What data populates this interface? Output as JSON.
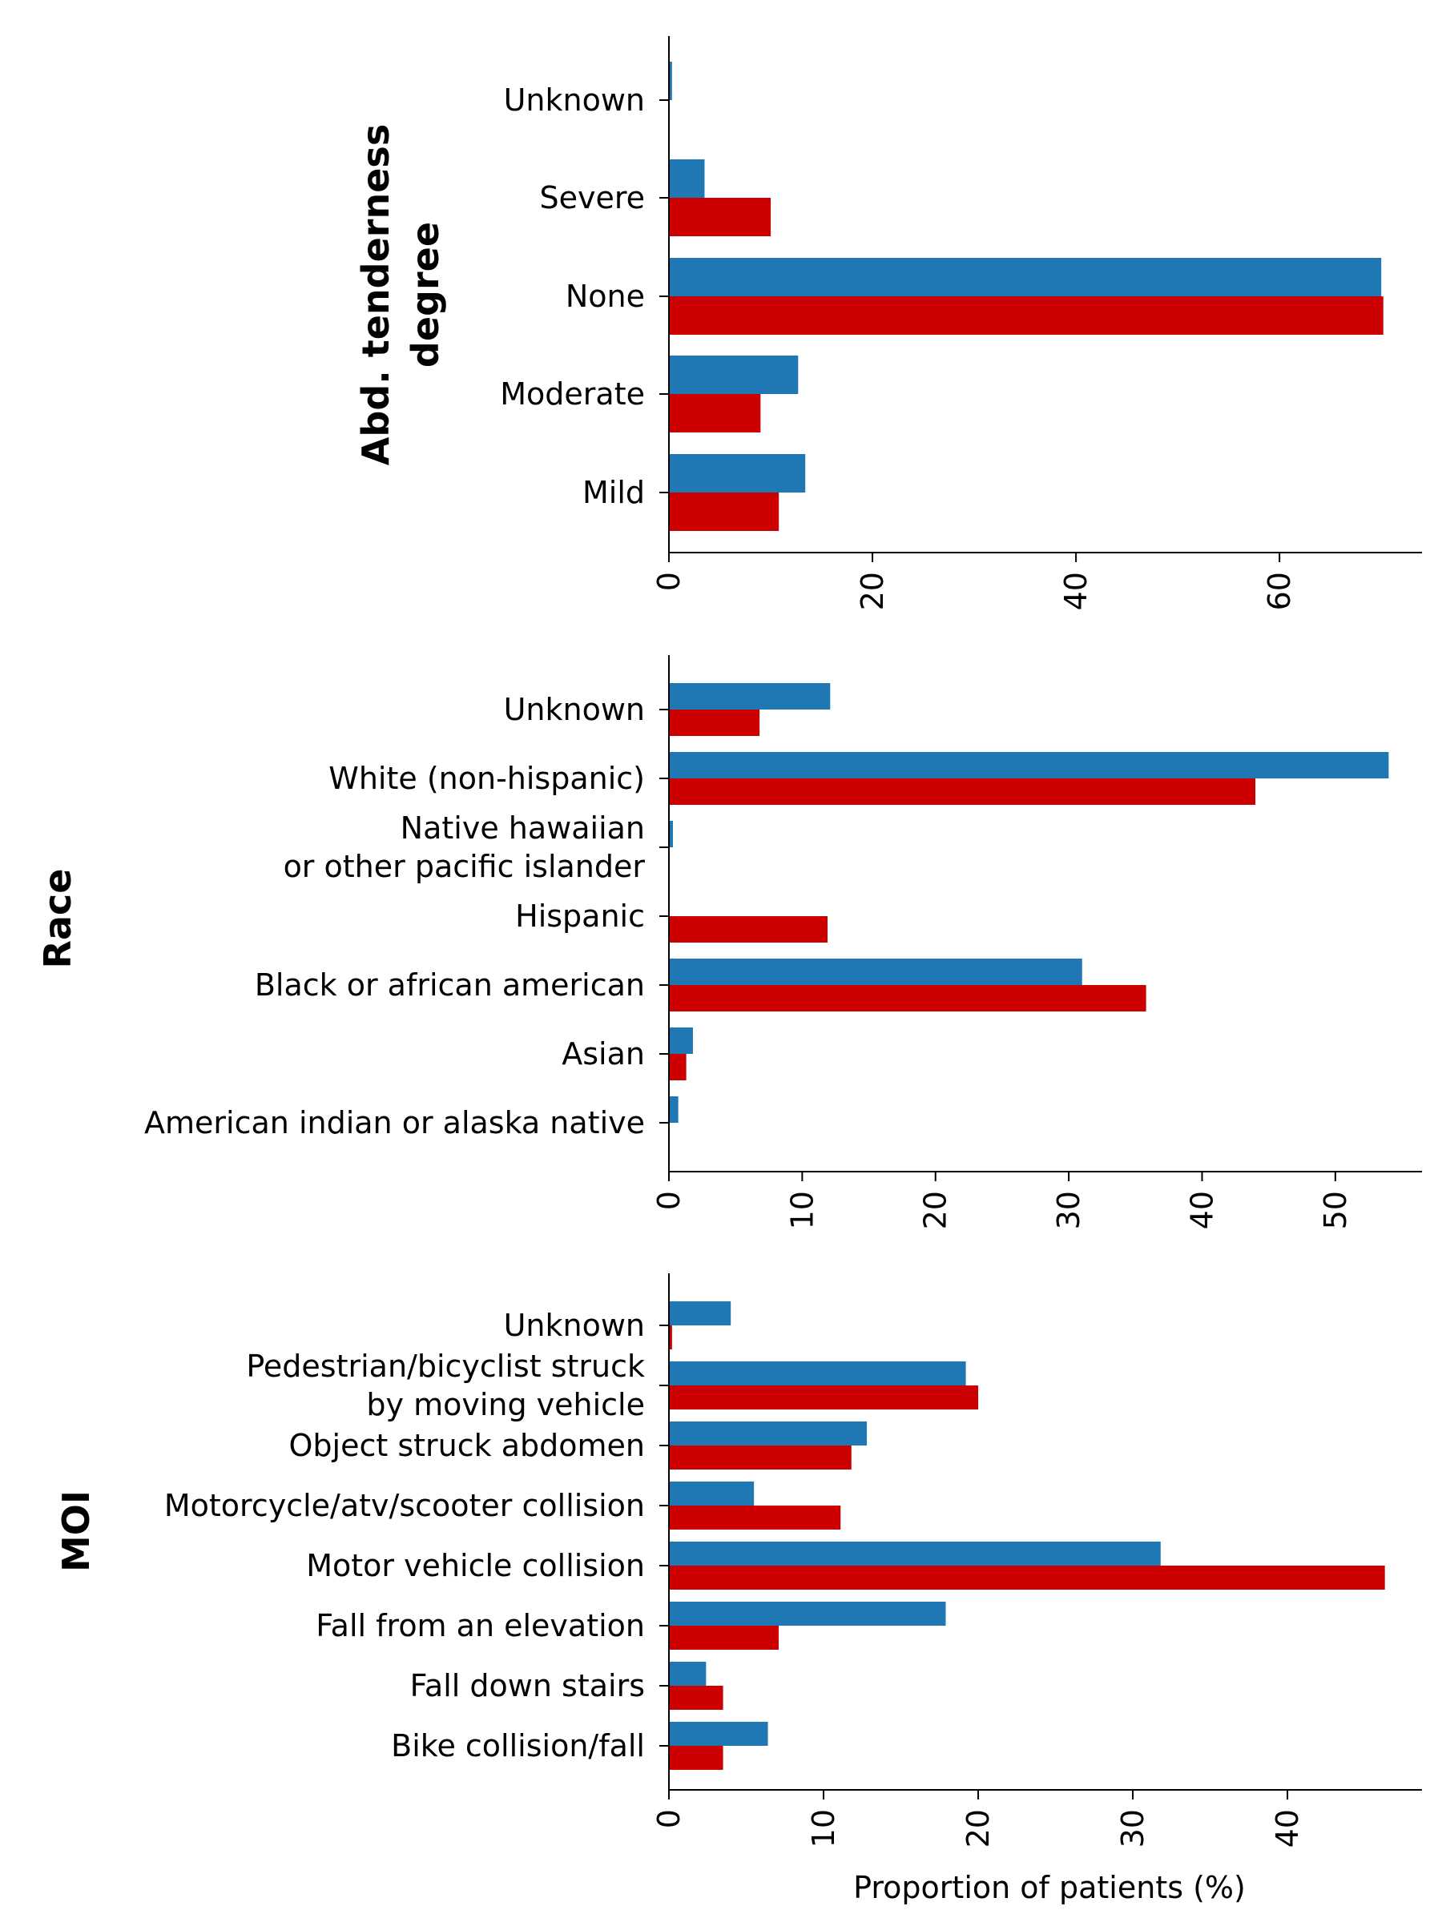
{
  "chart_data": [
    {
      "type": "bar",
      "orientation": "horizontal",
      "ylabel": "Abd. tenderness\ndegree",
      "xlabel": "",
      "categories": [
        "Unknown",
        "Severe",
        "None",
        "Moderate",
        "Mild"
      ],
      "series": [
        {
          "color": "#1f77b4",
          "values": [
            0.3,
            3.5,
            70.0,
            12.7,
            13.4
          ]
        },
        {
          "color": "#cc0000",
          "values": [
            0.0,
            10.0,
            70.2,
            9.0,
            10.8
          ]
        }
      ],
      "xlim": [
        0,
        74
      ],
      "xticks": [
        0,
        20,
        40,
        60
      ]
    },
    {
      "type": "bar",
      "orientation": "horizontal",
      "ylabel": "Race",
      "xlabel": "",
      "categories": [
        "Unknown",
        "White (non-hispanic)",
        "Native hawaiian\nor other pacific islander",
        "Hispanic",
        "Black or african american",
        "Asian",
        "American indian or alaska native"
      ],
      "series": [
        {
          "color": "#1f77b4",
          "values": [
            12.1,
            54.0,
            0.3,
            0.0,
            31.0,
            1.8,
            0.7
          ]
        },
        {
          "color": "#cc0000",
          "values": [
            6.8,
            44.0,
            0.0,
            11.9,
            35.8,
            1.3,
            0.0
          ]
        }
      ],
      "xlim": [
        0,
        56.5
      ],
      "xticks": [
        0,
        10,
        20,
        30,
        40,
        50
      ]
    },
    {
      "type": "bar",
      "orientation": "horizontal",
      "ylabel": "MOI",
      "xlabel": "Proportion of patients (%)",
      "categories": [
        "Unknown",
        "Pedestrian/bicyclist struck\nby moving vehicle",
        "Object struck abdomen",
        "Motorcycle/atv/scooter collision",
        "Motor vehicle collision",
        "Fall from an elevation",
        "Fall down stairs",
        "Bike collision/fall"
      ],
      "series": [
        {
          "color": "#1f77b4",
          "values": [
            4.0,
            19.2,
            12.8,
            5.5,
            31.8,
            17.9,
            2.4,
            6.4
          ]
        },
        {
          "color": "#cc0000",
          "values": [
            0.2,
            20.0,
            11.8,
            11.1,
            46.3,
            7.1,
            3.5,
            3.5
          ]
        }
      ],
      "xlim": [
        0,
        48.7
      ],
      "xticks": [
        0,
        10,
        20,
        30,
        40
      ]
    }
  ]
}
